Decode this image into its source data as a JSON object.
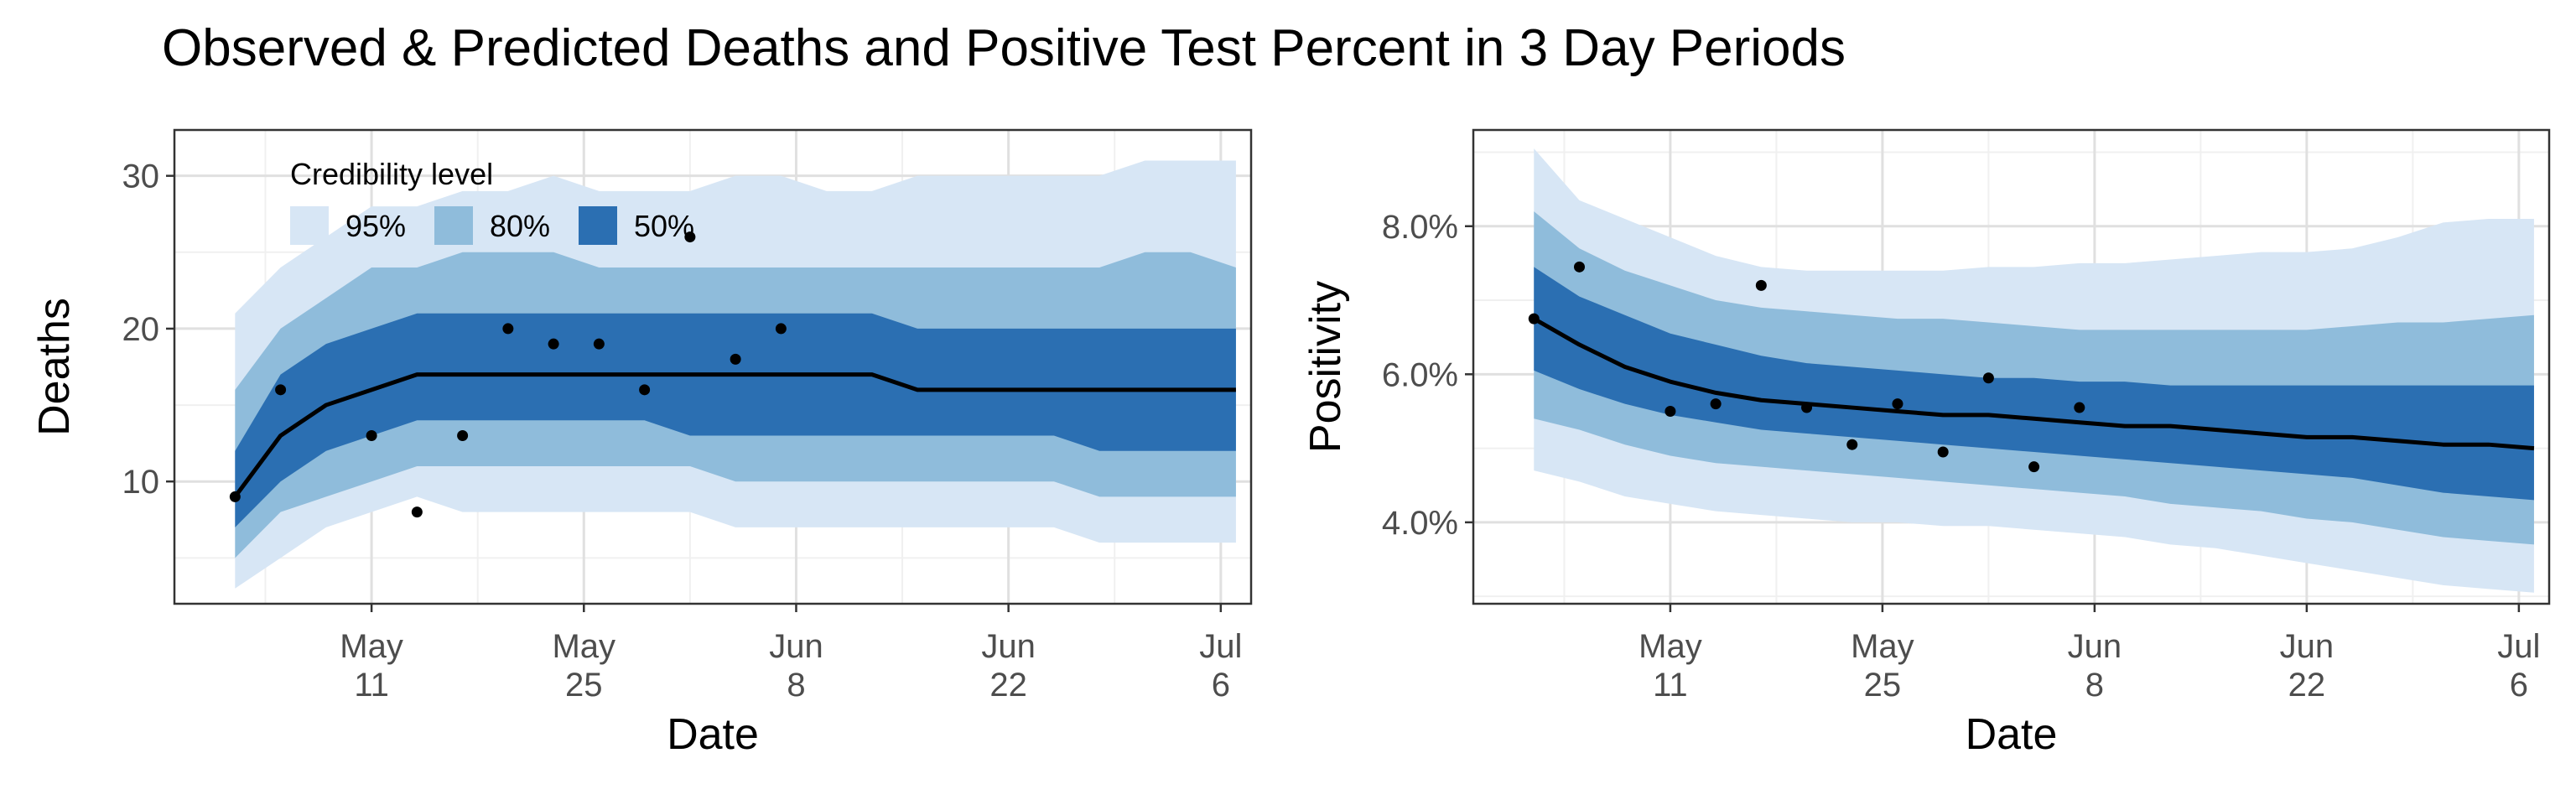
{
  "title": "Observed & Predicted Deaths and Positive Test Percent in 3 Day Periods",
  "colors": {
    "band_95": "#d7e6f5",
    "band_80": "#8fbcdb",
    "band_50": "#2b6fb2",
    "median_line": "#000000",
    "observed_points": "#000000",
    "panel_border": "#333333",
    "grid_major": "#e0e0e0",
    "grid_minor": "#f0f0f0"
  },
  "legend": {
    "title": "Credibility level",
    "items": [
      {
        "label": "95%",
        "color": "#d7e6f5"
      },
      {
        "label": "80%",
        "color": "#8fbcdb"
      },
      {
        "label": "50%",
        "color": "#2b6fb2"
      }
    ],
    "placement": "top-left inside left panel"
  },
  "chart_data": [
    {
      "type": "area",
      "xlabel": "Date",
      "ylabel": "Deaths",
      "xlim": [
        "2020-04-28",
        "2020-07-08"
      ],
      "ylim": [
        2,
        33
      ],
      "grid": true,
      "x_ticks": [
        {
          "date": "2020-05-11",
          "line1": "May",
          "line2": "11"
        },
        {
          "date": "2020-05-25",
          "line1": "May",
          "line2": "25"
        },
        {
          "date": "2020-06-08",
          "line1": "Jun",
          "line2": "8"
        },
        {
          "date": "2020-06-22",
          "line1": "Jun",
          "line2": "22"
        },
        {
          "date": "2020-07-06",
          "line1": "Jul",
          "line2": "6"
        }
      ],
      "y_ticks": [
        {
          "value": 10,
          "label": "10"
        },
        {
          "value": 20,
          "label": "20"
        },
        {
          "value": 30,
          "label": "30"
        }
      ],
      "predicted": [
        {
          "date": "2020-05-02",
          "median": 9,
          "lo50": 7,
          "hi50": 12,
          "lo80": 5,
          "hi80": 16,
          "lo95": 3,
          "hi95": 21
        },
        {
          "date": "2020-05-05",
          "median": 13,
          "lo50": 10,
          "hi50": 17,
          "lo80": 8,
          "hi80": 20,
          "lo95": 5,
          "hi95": 24
        },
        {
          "date": "2020-05-08",
          "median": 15,
          "lo50": 12,
          "hi50": 19,
          "lo80": 9,
          "hi80": 22,
          "lo95": 7,
          "hi95": 26
        },
        {
          "date": "2020-05-11",
          "median": 16,
          "lo50": 13,
          "hi50": 20,
          "lo80": 10,
          "hi80": 24,
          "lo95": 8,
          "hi95": 28
        },
        {
          "date": "2020-05-14",
          "median": 17,
          "lo50": 14,
          "hi50": 21,
          "lo80": 11,
          "hi80": 24,
          "lo95": 9,
          "hi95": 28
        },
        {
          "date": "2020-05-17",
          "median": 17,
          "lo50": 14,
          "hi50": 21,
          "lo80": 11,
          "hi80": 25,
          "lo95": 8,
          "hi95": 29
        },
        {
          "date": "2020-05-20",
          "median": 17,
          "lo50": 14,
          "hi50": 21,
          "lo80": 11,
          "hi80": 25,
          "lo95": 8,
          "hi95": 29
        },
        {
          "date": "2020-05-23",
          "median": 17,
          "lo50": 14,
          "hi50": 21,
          "lo80": 11,
          "hi80": 25,
          "lo95": 8,
          "hi95": 30
        },
        {
          "date": "2020-05-26",
          "median": 17,
          "lo50": 14,
          "hi50": 21,
          "lo80": 11,
          "hi80": 24,
          "lo95": 8,
          "hi95": 29
        },
        {
          "date": "2020-05-29",
          "median": 17,
          "lo50": 14,
          "hi50": 21,
          "lo80": 11,
          "hi80": 24,
          "lo95": 8,
          "hi95": 29
        },
        {
          "date": "2020-06-01",
          "median": 17,
          "lo50": 13,
          "hi50": 21,
          "lo80": 11,
          "hi80": 24,
          "lo95": 8,
          "hi95": 29
        },
        {
          "date": "2020-06-04",
          "median": 17,
          "lo50": 13,
          "hi50": 21,
          "lo80": 10,
          "hi80": 24,
          "lo95": 7,
          "hi95": 30
        },
        {
          "date": "2020-06-07",
          "median": 17,
          "lo50": 13,
          "hi50": 21,
          "lo80": 10,
          "hi80": 24,
          "lo95": 7,
          "hi95": 30
        },
        {
          "date": "2020-06-10",
          "median": 17,
          "lo50": 13,
          "hi50": 21,
          "lo80": 10,
          "hi80": 24,
          "lo95": 7,
          "hi95": 29
        },
        {
          "date": "2020-06-13",
          "median": 17,
          "lo50": 13,
          "hi50": 21,
          "lo80": 10,
          "hi80": 24,
          "lo95": 7,
          "hi95": 29
        },
        {
          "date": "2020-06-16",
          "median": 16,
          "lo50": 13,
          "hi50": 20,
          "lo80": 10,
          "hi80": 24,
          "lo95": 7,
          "hi95": 30
        },
        {
          "date": "2020-06-19",
          "median": 16,
          "lo50": 13,
          "hi50": 20,
          "lo80": 10,
          "hi80": 24,
          "lo95": 7,
          "hi95": 30
        },
        {
          "date": "2020-06-22",
          "median": 16,
          "lo50": 13,
          "hi50": 20,
          "lo80": 10,
          "hi80": 24,
          "lo95": 7,
          "hi95": 30
        },
        {
          "date": "2020-06-25",
          "median": 16,
          "lo50": 13,
          "hi50": 20,
          "lo80": 10,
          "hi80": 24,
          "lo95": 7,
          "hi95": 30
        },
        {
          "date": "2020-06-28",
          "median": 16,
          "lo50": 12,
          "hi50": 20,
          "lo80": 9,
          "hi80": 24,
          "lo95": 6,
          "hi95": 30
        },
        {
          "date": "2020-07-01",
          "median": 16,
          "lo50": 12,
          "hi50": 20,
          "lo80": 9,
          "hi80": 25,
          "lo95": 6,
          "hi95": 31
        },
        {
          "date": "2020-07-04",
          "median": 16,
          "lo50": 12,
          "hi50": 20,
          "lo80": 9,
          "hi80": 25,
          "lo95": 6,
          "hi95": 31
        },
        {
          "date": "2020-07-07",
          "median": 16,
          "lo50": 12,
          "hi50": 20,
          "lo80": 9,
          "hi80": 24,
          "lo95": 6,
          "hi95": 31
        }
      ],
      "observed": [
        {
          "date": "2020-05-02",
          "value": 9
        },
        {
          "date": "2020-05-05",
          "value": 16
        },
        {
          "date": "2020-05-11",
          "value": 13
        },
        {
          "date": "2020-05-14",
          "value": 8
        },
        {
          "date": "2020-05-17",
          "value": 13
        },
        {
          "date": "2020-05-20",
          "value": 20
        },
        {
          "date": "2020-05-23",
          "value": 19
        },
        {
          "date": "2020-05-26",
          "value": 19
        },
        {
          "date": "2020-05-29",
          "value": 16
        },
        {
          "date": "2020-06-01",
          "value": 26
        },
        {
          "date": "2020-06-04",
          "value": 18
        },
        {
          "date": "2020-06-07",
          "value": 20
        }
      ]
    },
    {
      "type": "area",
      "xlabel": "Date",
      "ylabel": "Positivity",
      "xlim": [
        "2020-04-28",
        "2020-07-08"
      ],
      "ylim": [
        2.9,
        9.3
      ],
      "grid": true,
      "x_ticks": [
        {
          "date": "2020-05-11",
          "line1": "May",
          "line2": "11"
        },
        {
          "date": "2020-05-25",
          "line1": "May",
          "line2": "25"
        },
        {
          "date": "2020-06-08",
          "line1": "Jun",
          "line2": "8"
        },
        {
          "date": "2020-06-22",
          "line1": "Jun",
          "line2": "22"
        },
        {
          "date": "2020-07-06",
          "line1": "Jul",
          "line2": "6"
        }
      ],
      "y_ticks": [
        {
          "value": 4,
          "label": "4.0%"
        },
        {
          "value": 6,
          "label": "6.0%"
        },
        {
          "value": 8,
          "label": "8.0%"
        }
      ],
      "predicted": [
        {
          "date": "2020-05-02",
          "median": 6.75,
          "lo50": 6.05,
          "hi50": 7.45,
          "lo80": 5.4,
          "hi80": 8.2,
          "lo95": 4.7,
          "hi95": 9.05
        },
        {
          "date": "2020-05-05",
          "median": 6.4,
          "lo50": 5.8,
          "hi50": 7.05,
          "lo80": 5.25,
          "hi80": 7.7,
          "lo95": 4.55,
          "hi95": 8.35
        },
        {
          "date": "2020-05-08",
          "median": 6.1,
          "lo50": 5.6,
          "hi50": 6.8,
          "lo80": 5.05,
          "hi80": 7.4,
          "lo95": 4.35,
          "hi95": 8.1
        },
        {
          "date": "2020-05-11",
          "median": 5.9,
          "lo50": 5.45,
          "hi50": 6.55,
          "lo80": 4.9,
          "hi80": 7.2,
          "lo95": 4.25,
          "hi95": 7.85
        },
        {
          "date": "2020-05-14",
          "median": 5.75,
          "lo50": 5.35,
          "hi50": 6.4,
          "lo80": 4.8,
          "hi80": 7.0,
          "lo95": 4.15,
          "hi95": 7.6
        },
        {
          "date": "2020-05-17",
          "median": 5.65,
          "lo50": 5.25,
          "hi50": 6.25,
          "lo80": 4.75,
          "hi80": 6.9,
          "lo95": 4.1,
          "hi95": 7.45
        },
        {
          "date": "2020-05-20",
          "median": 5.6,
          "lo50": 5.2,
          "hi50": 6.15,
          "lo80": 4.7,
          "hi80": 6.85,
          "lo95": 4.05,
          "hi95": 7.4
        },
        {
          "date": "2020-05-23",
          "median": 5.55,
          "lo50": 5.15,
          "hi50": 6.1,
          "lo80": 4.65,
          "hi80": 6.8,
          "lo95": 4.0,
          "hi95": 7.4
        },
        {
          "date": "2020-05-26",
          "median": 5.5,
          "lo50": 5.1,
          "hi50": 6.05,
          "lo80": 4.6,
          "hi80": 6.75,
          "lo95": 4.0,
          "hi95": 7.4
        },
        {
          "date": "2020-05-29",
          "median": 5.45,
          "lo50": 5.05,
          "hi50": 6.0,
          "lo80": 4.55,
          "hi80": 6.75,
          "lo95": 3.95,
          "hi95": 7.4
        },
        {
          "date": "2020-06-01",
          "median": 5.45,
          "lo50": 5.0,
          "hi50": 5.95,
          "lo80": 4.5,
          "hi80": 6.7,
          "lo95": 3.95,
          "hi95": 7.45
        },
        {
          "date": "2020-06-04",
          "median": 5.4,
          "lo50": 4.95,
          "hi50": 5.95,
          "lo80": 4.45,
          "hi80": 6.65,
          "lo95": 3.9,
          "hi95": 7.45
        },
        {
          "date": "2020-06-07",
          "median": 5.35,
          "lo50": 4.9,
          "hi50": 5.9,
          "lo80": 4.4,
          "hi80": 6.6,
          "lo95": 3.85,
          "hi95": 7.5
        },
        {
          "date": "2020-06-10",
          "median": 5.3,
          "lo50": 4.85,
          "hi50": 5.9,
          "lo80": 4.35,
          "hi80": 6.6,
          "lo95": 3.8,
          "hi95": 7.5
        },
        {
          "date": "2020-06-13",
          "median": 5.3,
          "lo50": 4.8,
          "hi50": 5.85,
          "lo80": 4.25,
          "hi80": 6.6,
          "lo95": 3.7,
          "hi95": 7.55
        },
        {
          "date": "2020-06-16",
          "median": 5.25,
          "lo50": 4.75,
          "hi50": 5.85,
          "lo80": 4.2,
          "hi80": 6.6,
          "lo95": 3.65,
          "hi95": 7.6
        },
        {
          "date": "2020-06-19",
          "median": 5.2,
          "lo50": 4.7,
          "hi50": 5.85,
          "lo80": 4.15,
          "hi80": 6.6,
          "lo95": 3.55,
          "hi95": 7.65
        },
        {
          "date": "2020-06-22",
          "median": 5.15,
          "lo50": 4.65,
          "hi50": 5.85,
          "lo80": 4.05,
          "hi80": 6.6,
          "lo95": 3.45,
          "hi95": 7.65
        },
        {
          "date": "2020-06-25",
          "median": 5.15,
          "lo50": 4.6,
          "hi50": 5.85,
          "lo80": 4.0,
          "hi80": 6.65,
          "lo95": 3.35,
          "hi95": 7.7
        },
        {
          "date": "2020-06-28",
          "median": 5.1,
          "lo50": 4.5,
          "hi50": 5.85,
          "lo80": 3.9,
          "hi80": 6.7,
          "lo95": 3.25,
          "hi95": 7.85
        },
        {
          "date": "2020-07-01",
          "median": 5.05,
          "lo50": 4.4,
          "hi50": 5.85,
          "lo80": 3.8,
          "hi80": 6.7,
          "lo95": 3.15,
          "hi95": 8.05
        },
        {
          "date": "2020-07-04",
          "median": 5.05,
          "lo50": 4.35,
          "hi50": 5.85,
          "lo80": 3.75,
          "hi80": 6.75,
          "lo95": 3.1,
          "hi95": 8.1
        },
        {
          "date": "2020-07-07",
          "median": 5.0,
          "lo50": 4.3,
          "hi50": 5.85,
          "lo80": 3.7,
          "hi80": 6.8,
          "lo95": 3.05,
          "hi95": 8.1
        }
      ],
      "observed": [
        {
          "date": "2020-05-02",
          "value": 6.75
        },
        {
          "date": "2020-05-05",
          "value": 7.45
        },
        {
          "date": "2020-05-11",
          "value": 5.5
        },
        {
          "date": "2020-05-14",
          "value": 5.6
        },
        {
          "date": "2020-05-17",
          "value": 7.2
        },
        {
          "date": "2020-05-20",
          "value": 5.55
        },
        {
          "date": "2020-05-23",
          "value": 5.05
        },
        {
          "date": "2020-05-26",
          "value": 5.6
        },
        {
          "date": "2020-05-29",
          "value": 4.95
        },
        {
          "date": "2020-06-01",
          "value": 5.95
        },
        {
          "date": "2020-06-04",
          "value": 4.75
        },
        {
          "date": "2020-06-07",
          "value": 5.55
        }
      ]
    }
  ]
}
